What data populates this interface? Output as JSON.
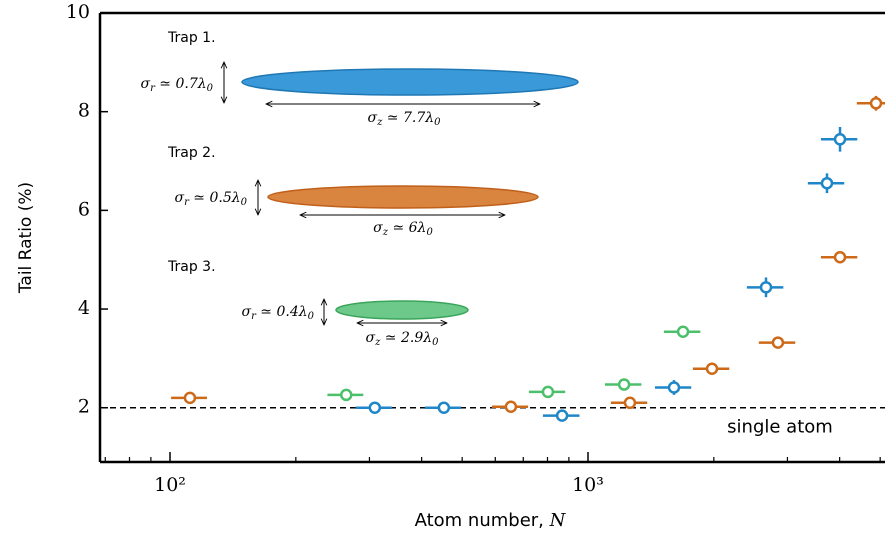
{
  "chart_data": {
    "type": "scatter",
    "xlabel": [
      "Atom number, ",
      "N"
    ],
    "ylabel": "Tail Ratio (%)",
    "xscale": "log",
    "xlim": [
      68,
      5135
    ],
    "ylim": [
      0.9,
      10
    ],
    "xticks": [
      {
        "value": 100,
        "label": "10²"
      },
      {
        "value": 1000,
        "label": "10³"
      }
    ],
    "xminorticks": [
      70,
      80,
      90,
      200,
      300,
      400,
      500,
      600,
      700,
      800,
      900,
      2000,
      3000,
      4000,
      5000
    ],
    "yticks": [
      2,
      4,
      6,
      8,
      10
    ],
    "hline": {
      "value": 2,
      "label": "single atom"
    },
    "series": [
      {
        "name": "Trap 1.",
        "color": "#1f86c8",
        "x": [
          309,
          452,
          867,
          1606,
          2666,
          3730,
          4008
        ],
        "xerr": [
          31,
          45,
          87,
          160,
          267,
          373,
          400
        ],
        "values": [
          2.0,
          2.0,
          1.84,
          2.41,
          4.44,
          6.55,
          7.44
        ],
        "yerr": [
          0.08,
          0.08,
          0.1,
          0.15,
          0.2,
          0.2,
          0.25
        ],
        "sigma_r": [
          "σ",
          "r",
          " ≃ 0.7λ",
          "0"
        ],
        "sigma_z": [
          "σ",
          "z",
          " ≃ 7.7λ",
          "0"
        ]
      },
      {
        "name": "Trap 2.",
        "color": "#cc6a1a",
        "x": [
          111.6,
          654,
          1260,
          1980,
          2847,
          4008,
          4887
        ],
        "xerr": [
          11,
          65,
          126,
          198,
          285,
          400,
          490
        ],
        "values": [
          2.2,
          2.02,
          2.1,
          2.79,
          3.32,
          5.05,
          8.17
        ],
        "yerr": [
          0.1,
          0.08,
          0.08,
          0.08,
          0.08,
          0.1,
          0.15
        ],
        "sigma_r": [
          "σ",
          "r",
          " ≃ 0.5λ",
          "0"
        ],
        "sigma_z": [
          "σ",
          "z",
          " ≃ 6λ",
          "0"
        ]
      },
      {
        "name": "Trap 3.",
        "color": "#4cbf6b",
        "x": [
          264,
          802,
          1220,
          1688
        ],
        "xerr": [
          26,
          80,
          122,
          169
        ],
        "values": [
          2.26,
          2.32,
          2.47,
          3.54
        ],
        "yerr": [
          0.08,
          0.1,
          0.1,
          0.08
        ],
        "sigma_r": [
          "σ",
          "r",
          " ≃ 0.4λ",
          "0"
        ],
        "sigma_z": [
          "σ",
          "z",
          " ≃ 2.9λ",
          "0"
        ]
      }
    ]
  }
}
